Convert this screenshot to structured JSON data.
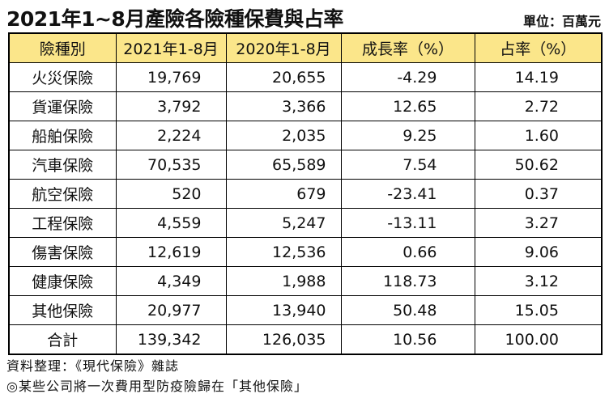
{
  "title": "2021年1~8月產險各險種保費與占率",
  "unit": "單位：百萬元",
  "table": {
    "headers": [
      "險種別",
      "2021年1-8月",
      "2020年1-8月",
      "成長率（%）",
      "占率（%）"
    ],
    "rows": [
      [
        "火災保險",
        "19,769",
        "20,655",
        "-4.29",
        "14.19"
      ],
      [
        "貨運保險",
        "3,792",
        "3,366",
        "12.65",
        "2.72"
      ],
      [
        "船舶保險",
        "2,224",
        "2,035",
        "9.25",
        "1.60"
      ],
      [
        "汽車保險",
        "70,535",
        "65,589",
        "7.54",
        "50.62"
      ],
      [
        "航空保險",
        "520",
        "679",
        "-23.41",
        "0.37"
      ],
      [
        "工程保險",
        "4,559",
        "5,247",
        "-13.11",
        "3.27"
      ],
      [
        "傷害保險",
        "12,619",
        "12,536",
        "0.66",
        "9.06"
      ],
      [
        "健康保險",
        "4,349",
        "1,988",
        "118.73",
        "3.12"
      ],
      [
        "其他保險",
        "20,977",
        "13,940",
        "50.48",
        "15.05"
      ]
    ],
    "total": [
      "合計",
      "139,342",
      "126,035",
      "10.56",
      "100.00"
    ]
  },
  "notes": [
    "資料整理：《現代保險》雜誌",
    "◎某些公司將一次費用型防疫險歸在「其他保險」"
  ]
}
